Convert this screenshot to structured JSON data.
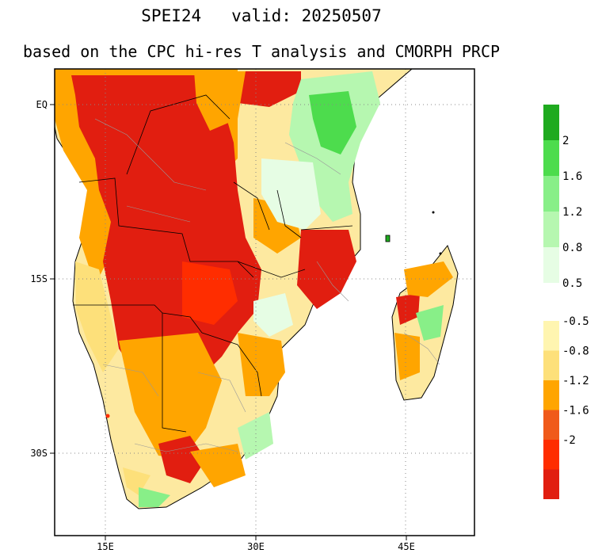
{
  "title": "SPEI24   valid: 20250507",
  "subtitle": "based on the CPC hi-res T analysis and CMORPH PRCP",
  "axes": {
    "lat_ticks": [
      {
        "value": 0,
        "label": "EQ"
      },
      {
        "value": -15,
        "label": "15S"
      },
      {
        "value": -30,
        "label": "30S"
      }
    ],
    "lon_ticks": [
      {
        "value": 15,
        "label": "15E"
      },
      {
        "value": 30,
        "label": "30E"
      },
      {
        "value": 45,
        "label": "45E"
      }
    ]
  },
  "colorbar": {
    "wet": [
      {
        "color": "#1faa1f"
      },
      {
        "color": "#4ddc4d"
      },
      {
        "color": "#88ef88"
      },
      {
        "color": "#b6f7b0"
      },
      {
        "color": "#e6fde4"
      }
    ],
    "wet_labels": [
      "2",
      "1.6",
      "1.2",
      "0.8",
      "0.5"
    ],
    "dry": [
      {
        "color": "#fff5b0"
      },
      {
        "color": "#fde07a"
      },
      {
        "color": "#ffa500"
      },
      {
        "color": "#f05a1a"
      },
      {
        "color": "#ff2d00"
      },
      {
        "color": "#e11e10"
      }
    ],
    "dry_labels": [
      "-0.5",
      "-0.8",
      "-1.2",
      "-1.6",
      "-2"
    ]
  }
}
